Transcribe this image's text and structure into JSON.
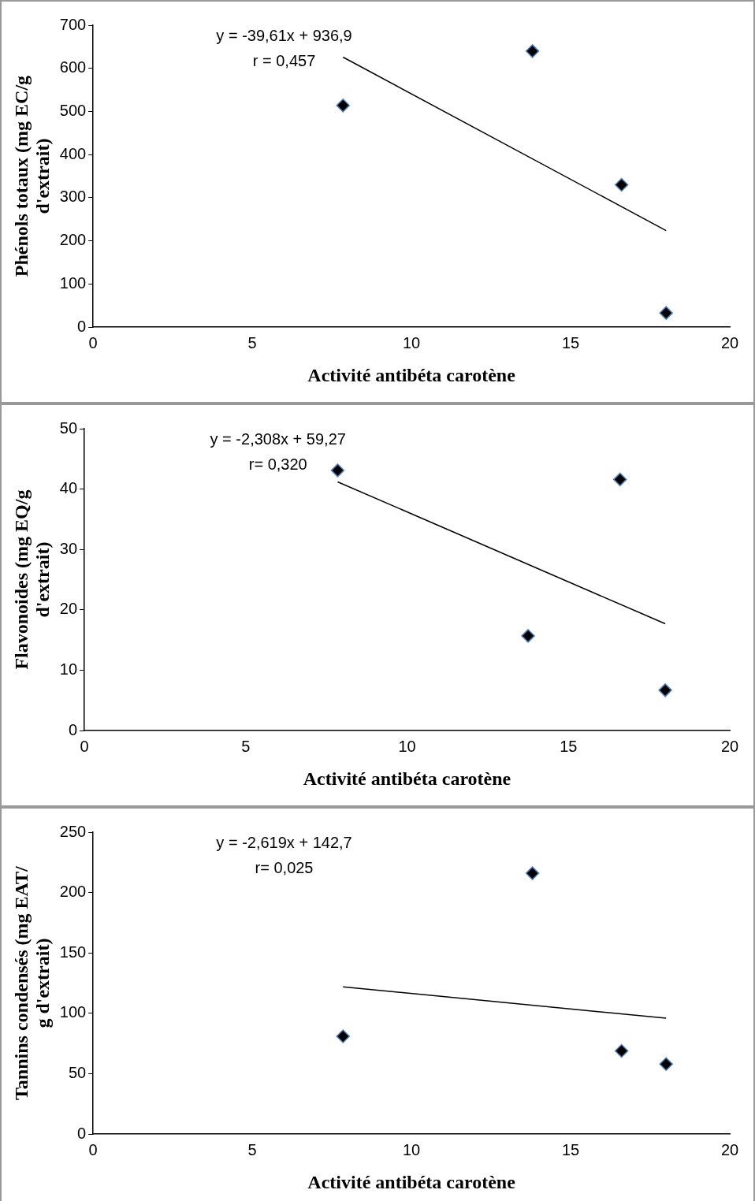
{
  "chart_data": [
    {
      "type": "scatter",
      "xlabel": "Activité antibéta carotène",
      "ylabel": "Phénols totaux (mg EC/g d'extrait)",
      "annotations": [
        "y = -39,61x + 936,9",
        "r = 0,457"
      ],
      "xlim": [
        0,
        20
      ],
      "xticks": [
        0,
        5,
        10,
        15,
        20
      ],
      "ylim": [
        0,
        700
      ],
      "yticks": [
        0,
        100,
        200,
        300,
        400,
        500,
        600,
        700
      ],
      "grid": false,
      "series": [
        {
          "color": "#000000",
          "marker": "diamond",
          "x": [
            7.85,
            13.8,
            16.6,
            18.0
          ],
          "values": [
            514,
            640,
            330,
            33
          ]
        },
        {
          "type": "line",
          "color": "#000000",
          "marker": "none",
          "x": [
            7.85,
            18.0
          ],
          "values": [
            626,
            224
          ]
        }
      ]
    },
    {
      "type": "scatter",
      "xlabel": "Activité antibéta carotène",
      "ylabel": "Flavonoides (mg EQ/g d'extrait)",
      "annotations": [
        "y = -2,308x + 59,27",
        "r= 0,320"
      ],
      "xlim": [
        0,
        20
      ],
      "xticks": [
        0,
        5,
        10,
        15,
        20
      ],
      "ylim": [
        0,
        50
      ],
      "yticks": [
        0,
        10,
        20,
        30,
        40,
        50
      ],
      "grid": false,
      "series": [
        {
          "color": "#000000",
          "marker": "diamond",
          "x": [
            7.85,
            13.75,
            16.6,
            18.0
          ],
          "values": [
            43.1,
            15.7,
            41.6,
            6.7
          ]
        },
        {
          "type": "line",
          "color": "#000000",
          "marker": "none",
          "x": [
            7.85,
            18.0
          ],
          "values": [
            41.2,
            17.7
          ]
        }
      ]
    },
    {
      "type": "scatter",
      "xlabel": "Activité antibéta carotène",
      "ylabel": "Tannins condensés (mg EAT/ g d'extrait)",
      "annotations": [
        "y = -2,619x + 142,7",
        "r= 0,025"
      ],
      "xlim": [
        0,
        20
      ],
      "xticks": [
        0,
        5,
        10,
        15,
        20
      ],
      "ylim": [
        0,
        250
      ],
      "yticks": [
        0,
        50,
        100,
        150,
        200,
        250
      ],
      "grid": false,
      "series": [
        {
          "color": "#000000",
          "marker": "diamond",
          "x": [
            7.85,
            13.8,
            16.6,
            18.0
          ],
          "values": [
            81,
            216,
            69,
            58
          ]
        },
        {
          "type": "line",
          "color": "#000000",
          "marker": "none",
          "x": [
            7.85,
            18.0
          ],
          "values": [
            122,
            96
          ]
        }
      ]
    }
  ]
}
